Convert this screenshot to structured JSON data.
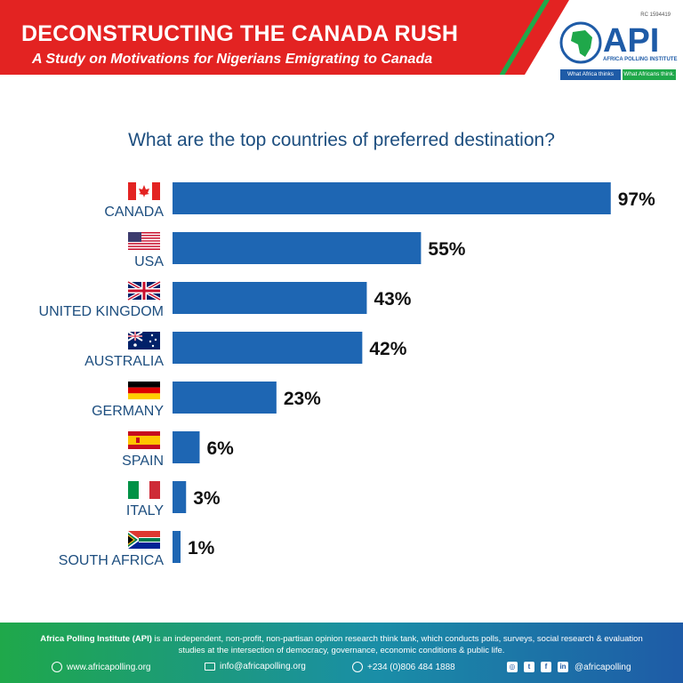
{
  "header": {
    "title": "DECONSTRUCTING THE CANADA RUSH",
    "subtitle": "A Study on Motivations for Nigerians Emigrating to Canada"
  },
  "logo": {
    "rc": "RC 1594419",
    "name": "API",
    "full": "AFRICA POLLING INSTITUTE",
    "tag_left": "What Africa thinks",
    "tag_right": "What Africans think."
  },
  "colors": {
    "bar": "#1e66b3",
    "banner": "#e32322",
    "label": "#1d4e7f",
    "accent_green": "#1fa84a"
  },
  "chart_data": {
    "type": "bar",
    "orientation": "horizontal",
    "title": "What are the top countries of preferred destination?",
    "categories": [
      "CANADA",
      "USA",
      "UNITED KINGDOM",
      "AUSTRALIA",
      "GERMANY",
      "SPAIN",
      "ITALY",
      "SOUTH AFRICA"
    ],
    "flags": [
      "flag-canada-icon",
      "flag-usa-icon",
      "flag-uk-icon",
      "flag-australia-icon",
      "flag-germany-icon",
      "flag-spain-icon",
      "flag-italy-icon",
      "flag-south-africa-icon"
    ],
    "values": [
      97,
      55,
      43,
      42,
      23,
      6,
      3,
      1
    ],
    "data_labels": [
      "97%",
      "55%",
      "43%",
      "42%",
      "23%",
      "6%",
      "3%",
      "1%"
    ],
    "xlim": [
      0,
      100
    ],
    "grid": false,
    "legend": "none"
  },
  "footer": {
    "org": "Africa Polling Institute (API)",
    "description": " is an independent, non-profit, non-partisan opinion research think tank, which conducts polls, surveys, social research & evaluation studies at the intersection of democracy, governance, economic conditions & public life.",
    "website": "www.africapolling.org",
    "email": "info@africapolling.org",
    "phone": "+234 (0)806 484 1888",
    "social": "@africapolling"
  }
}
